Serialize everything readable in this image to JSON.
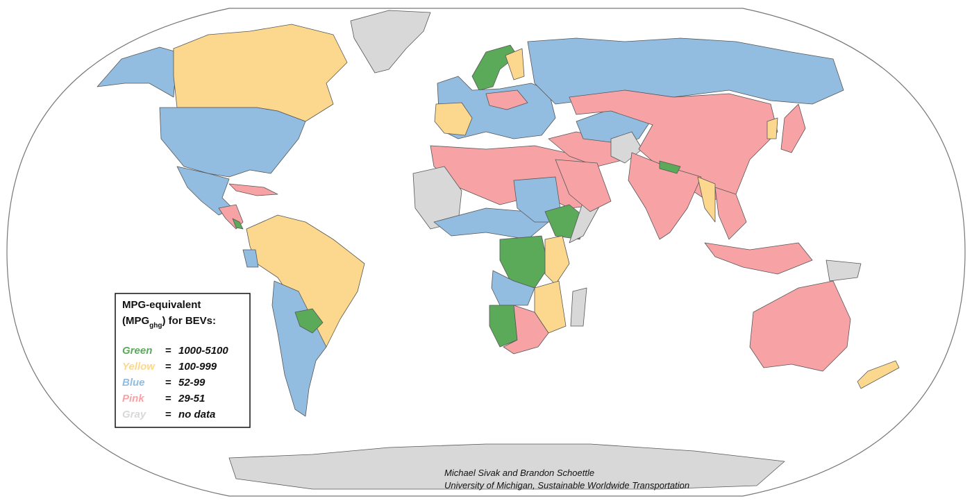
{
  "legend": {
    "title": "MPG-equivalent",
    "subtitle_open": "(MPG",
    "subtitle_sub": "ghg",
    "subtitle_close": ") for BEVs:",
    "entries": [
      {
        "name": "Green",
        "sign": "=",
        "range": "1000-5100",
        "color": "#5aaa5a"
      },
      {
        "name": "Yellow",
        "sign": "=",
        "range": "100-999",
        "color": "#fcd88e"
      },
      {
        "name": "Blue",
        "sign": "=",
        "range": "52-99",
        "color": "#92bde0"
      },
      {
        "name": "Pink",
        "sign": "=",
        "range": "29-51",
        "color": "#f7a3a6"
      },
      {
        "name": "Gray",
        "sign": "=",
        "range": "no data",
        "color": "#d8d8d8"
      }
    ]
  },
  "credits": [
    "Michael Sivak and Brandon Schoettle",
    "University of Michigan, Sustainable Worldwide Transportation"
  ]
}
